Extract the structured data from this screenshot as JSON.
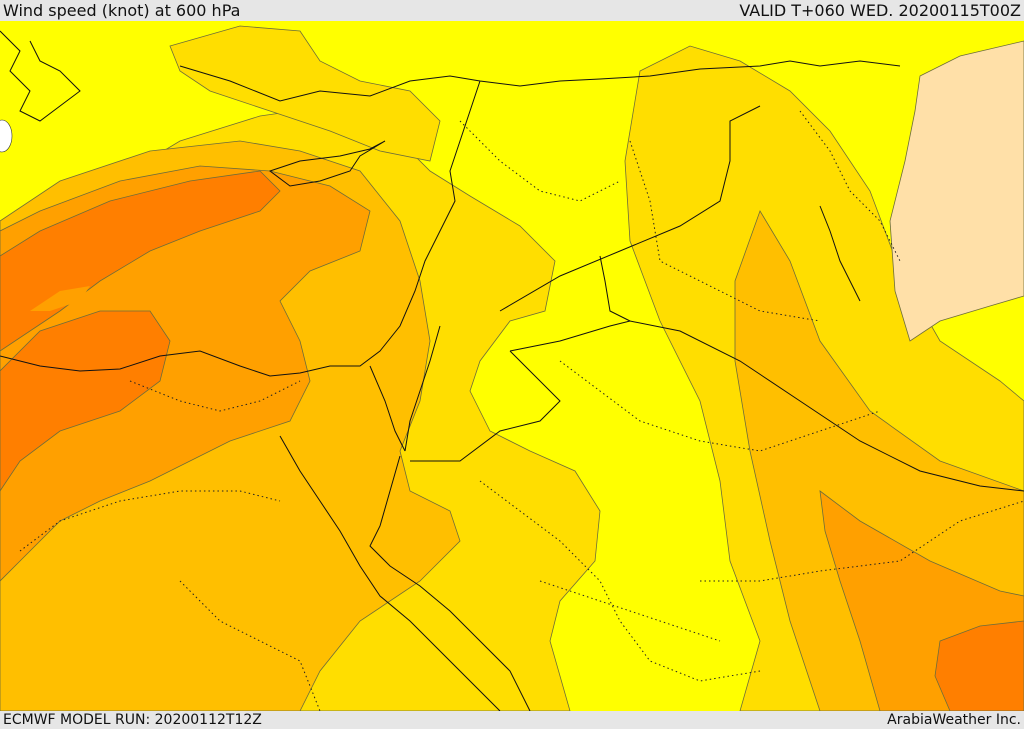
{
  "header": {
    "title": "Wind speed (knot) at 600 hPa",
    "valid": "VALID T+060 WED. 20200115T00Z"
  },
  "footer": {
    "model_run": "ECMWF MODEL RUN: 20200112T12Z",
    "credit": "ArabiaWeather Inc."
  },
  "colors": {
    "very_light": "#ffff00",
    "light": "#ffde00",
    "medium": "#ffbf00",
    "strong": "#ffa000",
    "stronger": "#ff7f00",
    "calm_high": "#ffe0a8"
  }
}
